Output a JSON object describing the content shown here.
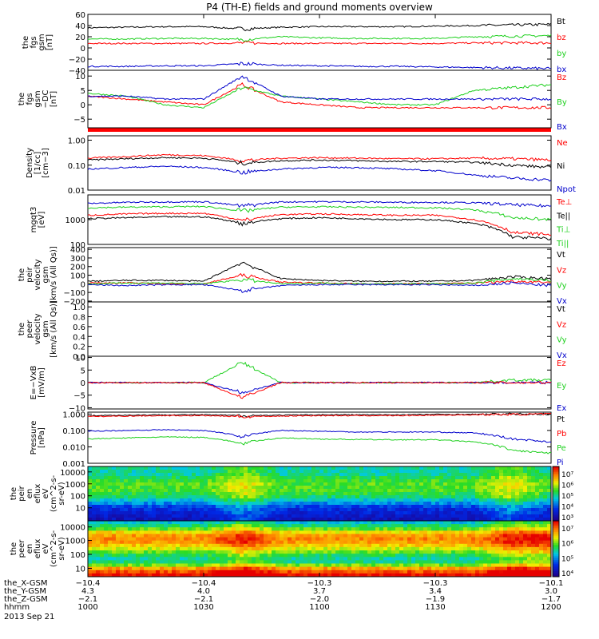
{
  "title": "P4 (TH-E) fields and ground moments overview",
  "date": "2013 Sep 21",
  "colors": {
    "black": "#000000",
    "red": "#ff0000",
    "green": "#1ed01e",
    "blue": "#0000cc"
  },
  "chart_data": [
    {
      "type": "line",
      "name": "fgs-gsm",
      "ylabel": [
        "the",
        "fgs",
        "gsm",
        "[nT]"
      ],
      "ylim": [
        -40,
        60
      ],
      "ticks": [
        {
          "v": 60,
          "t": "60"
        },
        {
          "v": 40,
          "t": "40"
        },
        {
          "v": 20,
          "t": "20"
        },
        {
          "v": 0,
          "t": "0"
        },
        {
          "v": -20,
          "t": "−20"
        },
        {
          "v": -40,
          "t": "−40"
        }
      ],
      "legend": [
        {
          "t": "Bt",
          "c": "black"
        },
        {
          "t": "bz",
          "c": "red"
        },
        {
          "t": "by",
          "c": "green"
        },
        {
          "t": "bx",
          "c": "blue"
        }
      ],
      "series": [
        {
          "c": "black",
          "values": [
            36,
            37,
            38,
            38,
            34,
            37,
            38,
            38,
            38,
            39,
            40,
            41,
            42
          ]
        },
        {
          "c": "red",
          "values": [
            8,
            8,
            8,
            8,
            9,
            8,
            8,
            8,
            8,
            8,
            9,
            9,
            9
          ]
        },
        {
          "c": "green",
          "values": [
            16,
            16,
            17,
            17,
            15,
            20,
            18,
            17,
            17,
            17,
            20,
            21,
            22
          ]
        },
        {
          "c": "blue",
          "values": [
            -33,
            -33,
            -32,
            -32,
            -28,
            -31,
            -32,
            -33,
            -33,
            -34,
            -35,
            -36,
            -37
          ]
        }
      ]
    },
    {
      "type": "line",
      "name": "fgs-gsm-dc",
      "ylabel": [
        "the",
        "fgs",
        "gsm",
        "−DC",
        "[nT]"
      ],
      "ylim": [
        -8,
        12
      ],
      "ticks": [
        {
          "v": 10,
          "t": "10"
        },
        {
          "v": 5,
          "t": "5"
        },
        {
          "v": 0,
          "t": "0"
        },
        {
          "v": -5,
          "t": "−5"
        }
      ],
      "legend": [
        {
          "t": "Bz",
          "c": "red"
        },
        {
          "t": "By",
          "c": "green"
        },
        {
          "t": "Bx",
          "c": "blue"
        }
      ],
      "series": [
        {
          "c": "red",
          "values": [
            3,
            2,
            1,
            0,
            7,
            1,
            0,
            -1,
            -1,
            -1,
            -1,
            -1,
            -1
          ]
        },
        {
          "c": "green",
          "values": [
            4,
            3,
            0,
            -1,
            6,
            3,
            2,
            1,
            0,
            0,
            5,
            6,
            7
          ]
        },
        {
          "c": "blue",
          "values": [
            3,
            3,
            2,
            2,
            10,
            3,
            2,
            2,
            2,
            2,
            2,
            2,
            2
          ]
        }
      ]
    },
    {
      "type": "line",
      "name": "density",
      "ylabel": [
        "Density",
        "[1/cc]",
        "[cm−3]"
      ],
      "log": true,
      "ylim": [
        0.01,
        1.5
      ],
      "ticks": [
        {
          "v": 1,
          "t": "1.00"
        },
        {
          "v": 0.1,
          "t": "0.10"
        },
        {
          "v": 0.01,
          "t": "0.01"
        }
      ],
      "legend": [
        {
          "t": "Ne",
          "c": "red"
        },
        {
          "t": "Ni",
          "c": "black"
        },
        {
          "t": "Npot",
          "c": "blue"
        }
      ],
      "series": [
        {
          "c": "red",
          "values": [
            0.19,
            0.22,
            0.26,
            0.24,
            0.15,
            0.19,
            0.2,
            0.19,
            0.18,
            0.18,
            0.19,
            0.18,
            0.16
          ]
        },
        {
          "c": "black",
          "values": [
            0.16,
            0.18,
            0.2,
            0.19,
            0.12,
            0.15,
            0.16,
            0.15,
            0.14,
            0.14,
            0.13,
            0.1,
            0.08
          ]
        },
        {
          "c": "blue",
          "values": [
            0.07,
            0.08,
            0.09,
            0.08,
            0.05,
            0.07,
            0.08,
            0.08,
            0.07,
            0.06,
            0.04,
            0.03,
            0.025
          ]
        }
      ]
    },
    {
      "type": "line",
      "name": "temperature",
      "ylabel": [
        "mgqt3",
        "[eV]"
      ],
      "log": true,
      "ylim": [
        100,
        10000
      ],
      "ticks": [
        {
          "v": 1000,
          "t": "1000"
        },
        {
          "v": 100,
          "t": "100"
        }
      ],
      "legend": [
        {
          "t": "Te⊥",
          "c": "red"
        },
        {
          "t": "Te||",
          "c": "black"
        },
        {
          "t": "Ti⊥",
          "c": "green"
        },
        {
          "t": "Ti||",
          "c": "green"
        }
      ],
      "series": [
        {
          "c": "blue",
          "values": [
            4500,
            5000,
            5200,
            5300,
            3500,
            5200,
            5300,
            5200,
            5000,
            5000,
            4800,
            4000,
            3500
          ]
        },
        {
          "c": "green",
          "values": [
            3000,
            3200,
            3300,
            3400,
            2200,
            3200,
            3300,
            3200,
            3100,
            3000,
            2500,
            1200,
            1000
          ]
        },
        {
          "c": "red",
          "values": [
            1500,
            1700,
            1800,
            1800,
            900,
            1600,
            1700,
            1600,
            1500,
            1500,
            1000,
            300,
            250
          ]
        },
        {
          "c": "black",
          "values": [
            1100,
            1200,
            1300,
            1300,
            700,
            1100,
            1200,
            1100,
            1000,
            1000,
            700,
            200,
            170
          ]
        }
      ]
    },
    {
      "type": "line",
      "name": "peir-velocity",
      "ylabel": [
        "the",
        "peir",
        "velocity",
        "gsm",
        "[km/s (All Qs)]"
      ],
      "ylim": [
        -210,
        420
      ],
      "ticks": [
        {
          "v": 400,
          "t": "400"
        },
        {
          "v": 300,
          "t": "300"
        },
        {
          "v": 200,
          "t": "200"
        },
        {
          "v": 100,
          "t": "100"
        },
        {
          "v": 0,
          "t": "0"
        },
        {
          "v": -100,
          "t": "−100"
        },
        {
          "v": -200,
          "t": "−200"
        }
      ],
      "legend": [
        {
          "t": "Vt",
          "c": "black"
        },
        {
          "t": "Vz",
          "c": "red"
        },
        {
          "t": "Vy",
          "c": "green"
        },
        {
          "t": "Vx",
          "c": "blue"
        }
      ],
      "series": [
        {
          "c": "black",
          "values": [
            30,
            40,
            40,
            30,
            250,
            60,
            40,
            30,
            30,
            30,
            40,
            80,
            60
          ]
        },
        {
          "c": "red",
          "values": [
            10,
            10,
            0,
            0,
            100,
            20,
            10,
            0,
            0,
            0,
            10,
            30,
            20
          ]
        },
        {
          "c": "green",
          "values": [
            0,
            10,
            10,
            0,
            50,
            0,
            10,
            0,
            0,
            0,
            10,
            60,
            40
          ]
        },
        {
          "c": "blue",
          "values": [
            -10,
            -20,
            -10,
            -10,
            -80,
            -20,
            -10,
            -10,
            -10,
            -10,
            -20,
            10,
            -20
          ]
        }
      ]
    },
    {
      "type": "line",
      "name": "peer-velocity",
      "ylabel": [
        "the",
        "peer",
        "velocity",
        "gsm",
        "[km/s (All Qs)]"
      ],
      "ylim": [
        0,
        1.1
      ],
      "ticks": [
        {
          "v": 1,
          "t": "1.0"
        },
        {
          "v": 0.8,
          "t": "0.8"
        },
        {
          "v": 0.6,
          "t": "0.6"
        },
        {
          "v": 0.4,
          "t": "0.4"
        },
        {
          "v": 0.2,
          "t": "0.2"
        },
        {
          "v": 0,
          "t": "0.0"
        }
      ],
      "legend": [
        {
          "t": "Vt",
          "c": "black"
        },
        {
          "t": "Vz",
          "c": "red"
        },
        {
          "t": "Vy",
          "c": "green"
        },
        {
          "t": "Vx",
          "c": "blue"
        }
      ],
      "series": []
    },
    {
      "type": "line",
      "name": "e-field",
      "ylabel": [
        "E=−VxB",
        "[mV/m]"
      ],
      "ylim": [
        -10.5,
        10.5
      ],
      "ticks": [
        {
          "v": 10,
          "t": "10"
        },
        {
          "v": 5,
          "t": "5"
        },
        {
          "v": 0,
          "t": "0"
        },
        {
          "v": -5,
          "t": "−5"
        },
        {
          "v": -10,
          "t": "−10"
        }
      ],
      "legend": [
        {
          "t": "Ez",
          "c": "red"
        },
        {
          "t": "Ey",
          "c": "green"
        },
        {
          "t": "Ex",
          "c": "blue"
        }
      ],
      "series": [
        {
          "c": "green",
          "values": [
            0,
            0,
            0,
            0,
            8,
            0,
            0,
            0,
            0,
            0,
            0,
            1,
            1
          ]
        },
        {
          "c": "blue",
          "values": [
            0,
            0,
            0,
            0,
            -4,
            0,
            0,
            0,
            0,
            0,
            0,
            0,
            0
          ]
        },
        {
          "c": "red",
          "values": [
            0,
            0,
            0,
            0,
            -6,
            0,
            0,
            0,
            0,
            0,
            0,
            0,
            0
          ]
        }
      ]
    },
    {
      "type": "line",
      "name": "pressure",
      "ylabel": [
        "Pressure",
        "[nPa]"
      ],
      "log": true,
      "ylim": [
        0.001,
        1.3
      ],
      "ticks": [
        {
          "v": 1,
          "t": "1.000"
        },
        {
          "v": 0.1,
          "t": "0.100"
        },
        {
          "v": 0.01,
          "t": "0.010"
        },
        {
          "v": 0.001,
          "t": "0.001"
        }
      ],
      "legend": [
        {
          "t": "Pt",
          "c": "black"
        },
        {
          "t": "Pb",
          "c": "red"
        },
        {
          "t": "Pe",
          "c": "green"
        },
        {
          "t": "Pi",
          "c": "blue"
        }
      ],
      "series": [
        {
          "c": "black",
          "values": [
            0.8,
            0.85,
            0.9,
            0.9,
            0.8,
            0.85,
            0.9,
            0.9,
            0.9,
            0.95,
            0.95,
            1.0,
            1.0
          ]
        },
        {
          "c": "red",
          "values": [
            0.7,
            0.75,
            0.8,
            0.8,
            0.7,
            0.75,
            0.8,
            0.8,
            0.8,
            0.85,
            0.9,
            0.95,
            1.0
          ]
        },
        {
          "c": "blue",
          "values": [
            0.09,
            0.1,
            0.11,
            0.1,
            0.04,
            0.1,
            0.09,
            0.08,
            0.08,
            0.08,
            0.07,
            0.03,
            0.02
          ]
        },
        {
          "c": "green",
          "values": [
            0.03,
            0.035,
            0.04,
            0.038,
            0.015,
            0.035,
            0.03,
            0.028,
            0.027,
            0.027,
            0.02,
            0.006,
            0.004
          ]
        }
      ]
    },
    {
      "type": "heatmap",
      "name": "peir-en-eflux",
      "ylabel": [
        "the",
        "peir",
        "en",
        "eflux",
        "eV",
        "(cm^2-s-",
        "sr-eV)"
      ],
      "ticks": [
        {
          "f": 0.1,
          "t": "10000"
        },
        {
          "f": 0.32,
          "t": "1000"
        },
        {
          "f": 0.54,
          "t": "100"
        },
        {
          "f": 0.76,
          "t": "10"
        }
      ],
      "colorbar": [
        "10⁷",
        "10⁶",
        "10⁵",
        "10⁴",
        "10³"
      ],
      "profile": [
        0.45,
        0.45,
        0.55,
        0.58,
        0.56,
        0.5,
        0.35,
        0.2,
        0.15,
        0.1
      ],
      "time": [
        0,
        0,
        0,
        0,
        1,
        0,
        0,
        0,
        0,
        0,
        0,
        1,
        0
      ]
    },
    {
      "type": "heatmap",
      "name": "peer-en-eflux",
      "ylabel": [
        "the",
        "peer",
        "en",
        "eflux",
        "eV",
        "(cm^2-s-",
        "sr-eV)"
      ],
      "ticks": [
        {
          "f": 0.11,
          "t": "10000"
        },
        {
          "f": 0.35,
          "t": "1000"
        },
        {
          "f": 0.6,
          "t": "100"
        },
        {
          "f": 0.85,
          "t": "10"
        }
      ],
      "colorbar": [
        "10⁷",
        "10⁶",
        "10⁵",
        "10⁴"
      ],
      "profile": [
        0.4,
        0.55,
        0.8,
        0.85,
        0.75,
        0.6,
        0.45,
        0.5,
        0.85,
        1.0
      ],
      "time": [
        0,
        0,
        0,
        0,
        1,
        0,
        0,
        0,
        0,
        0,
        0,
        1,
        1
      ]
    }
  ],
  "xaxis": {
    "rows": [
      {
        "label": "the_X-GSM",
        "values": [
          "−10.4",
          "−10.4",
          "−10.3",
          "−10.3",
          "−10.1"
        ]
      },
      {
        "label": "the_Y-GSM",
        "values": [
          "4.3",
          "4.0",
          "3.7",
          "3.4",
          "3.0"
        ]
      },
      {
        "label": "the_Z-GSM",
        "values": [
          "−2.1",
          "−2.1",
          "−2.0",
          "−1.9",
          "−1.7"
        ]
      },
      {
        "label": "hhmm",
        "values": [
          "1000",
          "1030",
          "1100",
          "1130",
          "1200"
        ]
      }
    ]
  }
}
